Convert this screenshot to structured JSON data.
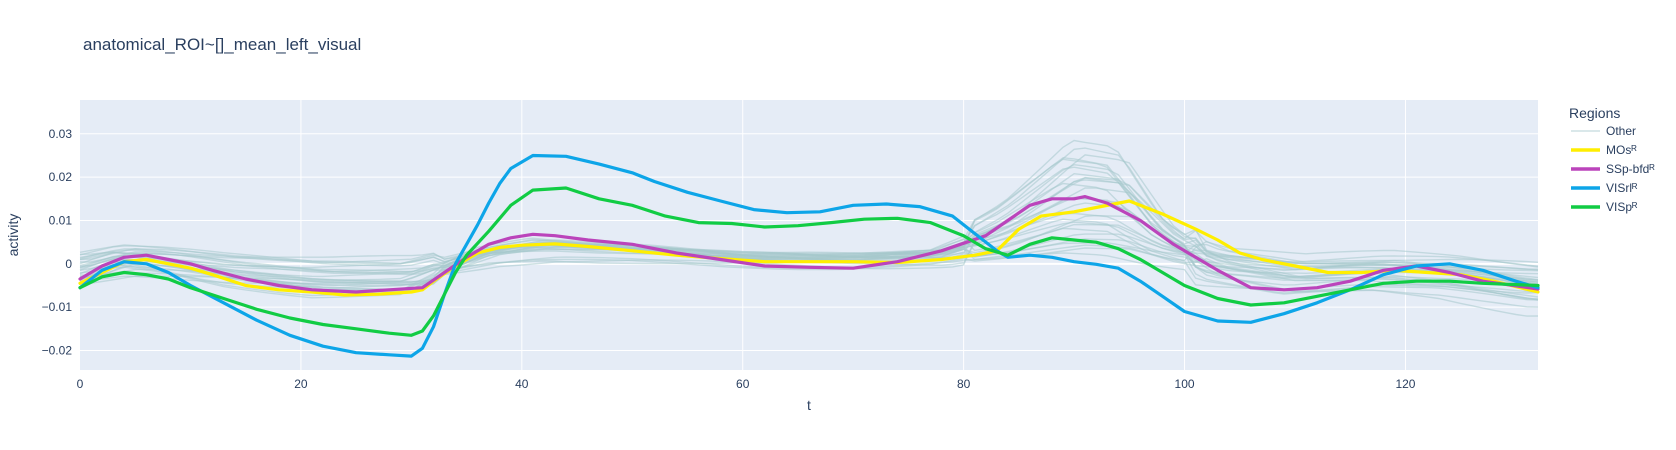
{
  "chart_data": {
    "type": "line",
    "title": "anatomical_ROI~[]_mean_left_visual",
    "xlabel": "t",
    "ylabel": "activity",
    "xlim": [
      0,
      132
    ],
    "ylim": [
      -0.0245,
      0.0378
    ],
    "xticks": [
      0,
      20,
      40,
      60,
      80,
      100,
      120
    ],
    "xtick_labels": [
      "0",
      "20",
      "40",
      "60",
      "80",
      "100",
      "120"
    ],
    "yticks": [
      -0.02,
      -0.01,
      0,
      0.01,
      0.02,
      0.03
    ],
    "ytick_labels": [
      "−0.02",
      "−0.01",
      "0",
      "0.01",
      "0.02",
      "0.03"
    ],
    "grid": true,
    "legend": {
      "title": "Regions",
      "placement": "right",
      "entries": [
        {
          "name": "Other",
          "color": "#a6c8cc"
        },
        {
          "name": "MOsᴿ",
          "color": "#ffee00"
        },
        {
          "name": "SSp-bfdᴿ",
          "color": "#bb44bb"
        },
        {
          "name": "VISrlᴿ",
          "color": "#0da5e8"
        },
        {
          "name": "VISpᴿ",
          "color": "#11cc44"
        }
      ]
    },
    "background_series_count": 28,
    "background_series_color": "#a6c8cc",
    "series": [
      {
        "name": "MOsᴿ",
        "color": "#ffee00",
        "points": [
          [
            0,
            -0.0045
          ],
          [
            2,
            -0.002
          ],
          [
            4,
            0.0005
          ],
          [
            6,
            0.001
          ],
          [
            8,
            0.0
          ],
          [
            10,
            -0.001
          ],
          [
            12,
            -0.0025
          ],
          [
            15,
            -0.005
          ],
          [
            18,
            -0.006
          ],
          [
            21,
            -0.0065
          ],
          [
            24,
            -0.0072
          ],
          [
            27,
            -0.007
          ],
          [
            30,
            -0.0065
          ],
          [
            31,
            -0.006
          ],
          [
            32,
            -0.004
          ],
          [
            34,
            -0.0005
          ],
          [
            36,
            0.0025
          ],
          [
            38,
            0.0038
          ],
          [
            40,
            0.0043
          ],
          [
            43,
            0.0046
          ],
          [
            46,
            0.004
          ],
          [
            50,
            0.003
          ],
          [
            54,
            0.002
          ],
          [
            58,
            0.0012
          ],
          [
            62,
            0.0005
          ],
          [
            66,
            0.0005
          ],
          [
            70,
            0.0005
          ],
          [
            74,
            0.0003
          ],
          [
            78,
            0.001
          ],
          [
            81,
            0.002
          ],
          [
            83,
            0.003
          ],
          [
            85,
            0.008
          ],
          [
            87,
            0.011
          ],
          [
            90,
            0.012
          ],
          [
            92,
            0.013
          ],
          [
            95,
            0.0145
          ],
          [
            98,
            0.0115
          ],
          [
            101,
            0.008
          ],
          [
            103,
            0.0055
          ],
          [
            105,
            0.0025
          ],
          [
            107,
            0.001
          ],
          [
            110,
            -0.0005
          ],
          [
            113,
            -0.002
          ],
          [
            116,
            -0.002
          ],
          [
            119,
            -0.0015
          ],
          [
            122,
            -0.002
          ],
          [
            125,
            -0.0025
          ],
          [
            128,
            -0.004
          ],
          [
            132,
            -0.0065
          ]
        ]
      },
      {
        "name": "SSp-bfdᴿ",
        "color": "#bb44bb",
        "points": [
          [
            0,
            -0.0035
          ],
          [
            2,
            -0.0005
          ],
          [
            4,
            0.0015
          ],
          [
            6,
            0.002
          ],
          [
            8,
            0.001
          ],
          [
            10,
            0.0
          ],
          [
            12,
            -0.0015
          ],
          [
            15,
            -0.0035
          ],
          [
            18,
            -0.005
          ],
          [
            21,
            -0.006
          ],
          [
            25,
            -0.0065
          ],
          [
            28,
            -0.006
          ],
          [
            31,
            -0.0055
          ],
          [
            33,
            -0.002
          ],
          [
            35,
            0.0015
          ],
          [
            37,
            0.0045
          ],
          [
            39,
            0.006
          ],
          [
            41,
            0.0068
          ],
          [
            43,
            0.0065
          ],
          [
            46,
            0.0055
          ],
          [
            50,
            0.0045
          ],
          [
            54,
            0.0025
          ],
          [
            58,
            0.001
          ],
          [
            62,
            -0.0005
          ],
          [
            66,
            -0.0008
          ],
          [
            70,
            -0.001
          ],
          [
            74,
            0.0005
          ],
          [
            78,
            0.003
          ],
          [
            82,
            0.0065
          ],
          [
            84,
            0.01
          ],
          [
            86,
            0.0135
          ],
          [
            88,
            0.015
          ],
          [
            90,
            0.015
          ],
          [
            91,
            0.0155
          ],
          [
            93,
            0.014
          ],
          [
            96,
            0.01
          ],
          [
            99,
            0.0045
          ],
          [
            101,
            0.0015
          ],
          [
            103,
            -0.0015
          ],
          [
            106,
            -0.0055
          ],
          [
            109,
            -0.006
          ],
          [
            112,
            -0.0055
          ],
          [
            115,
            -0.004
          ],
          [
            118,
            -0.0015
          ],
          [
            121,
            -0.0005
          ],
          [
            124,
            -0.002
          ],
          [
            127,
            -0.004
          ],
          [
            132,
            -0.0058
          ]
        ]
      },
      {
        "name": "VISrlᴿ",
        "color": "#0da5e8",
        "points": [
          [
            0,
            -0.0055
          ],
          [
            2,
            -0.0015
          ],
          [
            4,
            0.0005
          ],
          [
            6,
            0.0
          ],
          [
            8,
            -0.002
          ],
          [
            10,
            -0.005
          ],
          [
            13,
            -0.009
          ],
          [
            16,
            -0.013
          ],
          [
            19,
            -0.0165
          ],
          [
            22,
            -0.019
          ],
          [
            25,
            -0.0205
          ],
          [
            28,
            -0.021
          ],
          [
            30,
            -0.0213
          ],
          [
            31,
            -0.0195
          ],
          [
            32,
            -0.0145
          ],
          [
            33,
            -0.007
          ],
          [
            34,
            0.0
          ],
          [
            35,
            0.0045
          ],
          [
            36,
            0.009
          ],
          [
            37,
            0.014
          ],
          [
            38,
            0.0185
          ],
          [
            39,
            0.022
          ],
          [
            41,
            0.025
          ],
          [
            44,
            0.0248
          ],
          [
            47,
            0.023
          ],
          [
            50,
            0.021
          ],
          [
            52,
            0.019
          ],
          [
            55,
            0.0165
          ],
          [
            58,
            0.0145
          ],
          [
            61,
            0.0125
          ],
          [
            64,
            0.0118
          ],
          [
            67,
            0.012
          ],
          [
            70,
            0.0135
          ],
          [
            73,
            0.0138
          ],
          [
            76,
            0.0132
          ],
          [
            79,
            0.011
          ],
          [
            81,
            0.007
          ],
          [
            83,
            0.003
          ],
          [
            84,
            0.0015
          ],
          [
            86,
            0.002
          ],
          [
            88,
            0.0015
          ],
          [
            90,
            0.0005
          ],
          [
            92,
            -0.0001
          ],
          [
            94,
            -0.001
          ],
          [
            96,
            -0.004
          ],
          [
            98,
            -0.0075
          ],
          [
            100,
            -0.011
          ],
          [
            103,
            -0.0132
          ],
          [
            106,
            -0.0135
          ],
          [
            109,
            -0.0115
          ],
          [
            112,
            -0.009
          ],
          [
            115,
            -0.006
          ],
          [
            118,
            -0.0025
          ],
          [
            121,
            -0.0005
          ],
          [
            124,
            0.0
          ],
          [
            127,
            -0.0015
          ],
          [
            130,
            -0.004
          ],
          [
            132,
            -0.0055
          ]
        ]
      },
      {
        "name": "VISpᴿ",
        "color": "#11cc44",
        "points": [
          [
            0,
            -0.0055
          ],
          [
            2,
            -0.003
          ],
          [
            4,
            -0.002
          ],
          [
            6,
            -0.0025
          ],
          [
            8,
            -0.0035
          ],
          [
            10,
            -0.0055
          ],
          [
            13,
            -0.008
          ],
          [
            16,
            -0.0105
          ],
          [
            19,
            -0.0125
          ],
          [
            22,
            -0.014
          ],
          [
            25,
            -0.015
          ],
          [
            28,
            -0.016
          ],
          [
            30,
            -0.0165
          ],
          [
            31,
            -0.0155
          ],
          [
            32,
            -0.012
          ],
          [
            33,
            -0.007
          ],
          [
            34,
            -0.002
          ],
          [
            35,
            0.002
          ],
          [
            37,
            0.0075
          ],
          [
            39,
            0.0135
          ],
          [
            41,
            0.017
          ],
          [
            44,
            0.0175
          ],
          [
            47,
            0.015
          ],
          [
            50,
            0.0135
          ],
          [
            53,
            0.011
          ],
          [
            56,
            0.0095
          ],
          [
            59,
            0.0093
          ],
          [
            62,
            0.0085
          ],
          [
            65,
            0.0088
          ],
          [
            68,
            0.0095
          ],
          [
            71,
            0.0103
          ],
          [
            74,
            0.0105
          ],
          [
            77,
            0.0095
          ],
          [
            80,
            0.0065
          ],
          [
            82,
            0.0035
          ],
          [
            84,
            0.002
          ],
          [
            86,
            0.0045
          ],
          [
            88,
            0.006
          ],
          [
            90,
            0.0055
          ],
          [
            92,
            0.005
          ],
          [
            94,
            0.0035
          ],
          [
            96,
            0.001
          ],
          [
            98,
            -0.002
          ],
          [
            100,
            -0.005
          ],
          [
            103,
            -0.008
          ],
          [
            106,
            -0.0095
          ],
          [
            109,
            -0.009
          ],
          [
            112,
            -0.0075
          ],
          [
            115,
            -0.006
          ],
          [
            118,
            -0.0045
          ],
          [
            121,
            -0.004
          ],
          [
            124,
            -0.004
          ],
          [
            127,
            -0.0045
          ],
          [
            130,
            -0.0048
          ],
          [
            132,
            -0.005
          ]
        ]
      }
    ]
  }
}
